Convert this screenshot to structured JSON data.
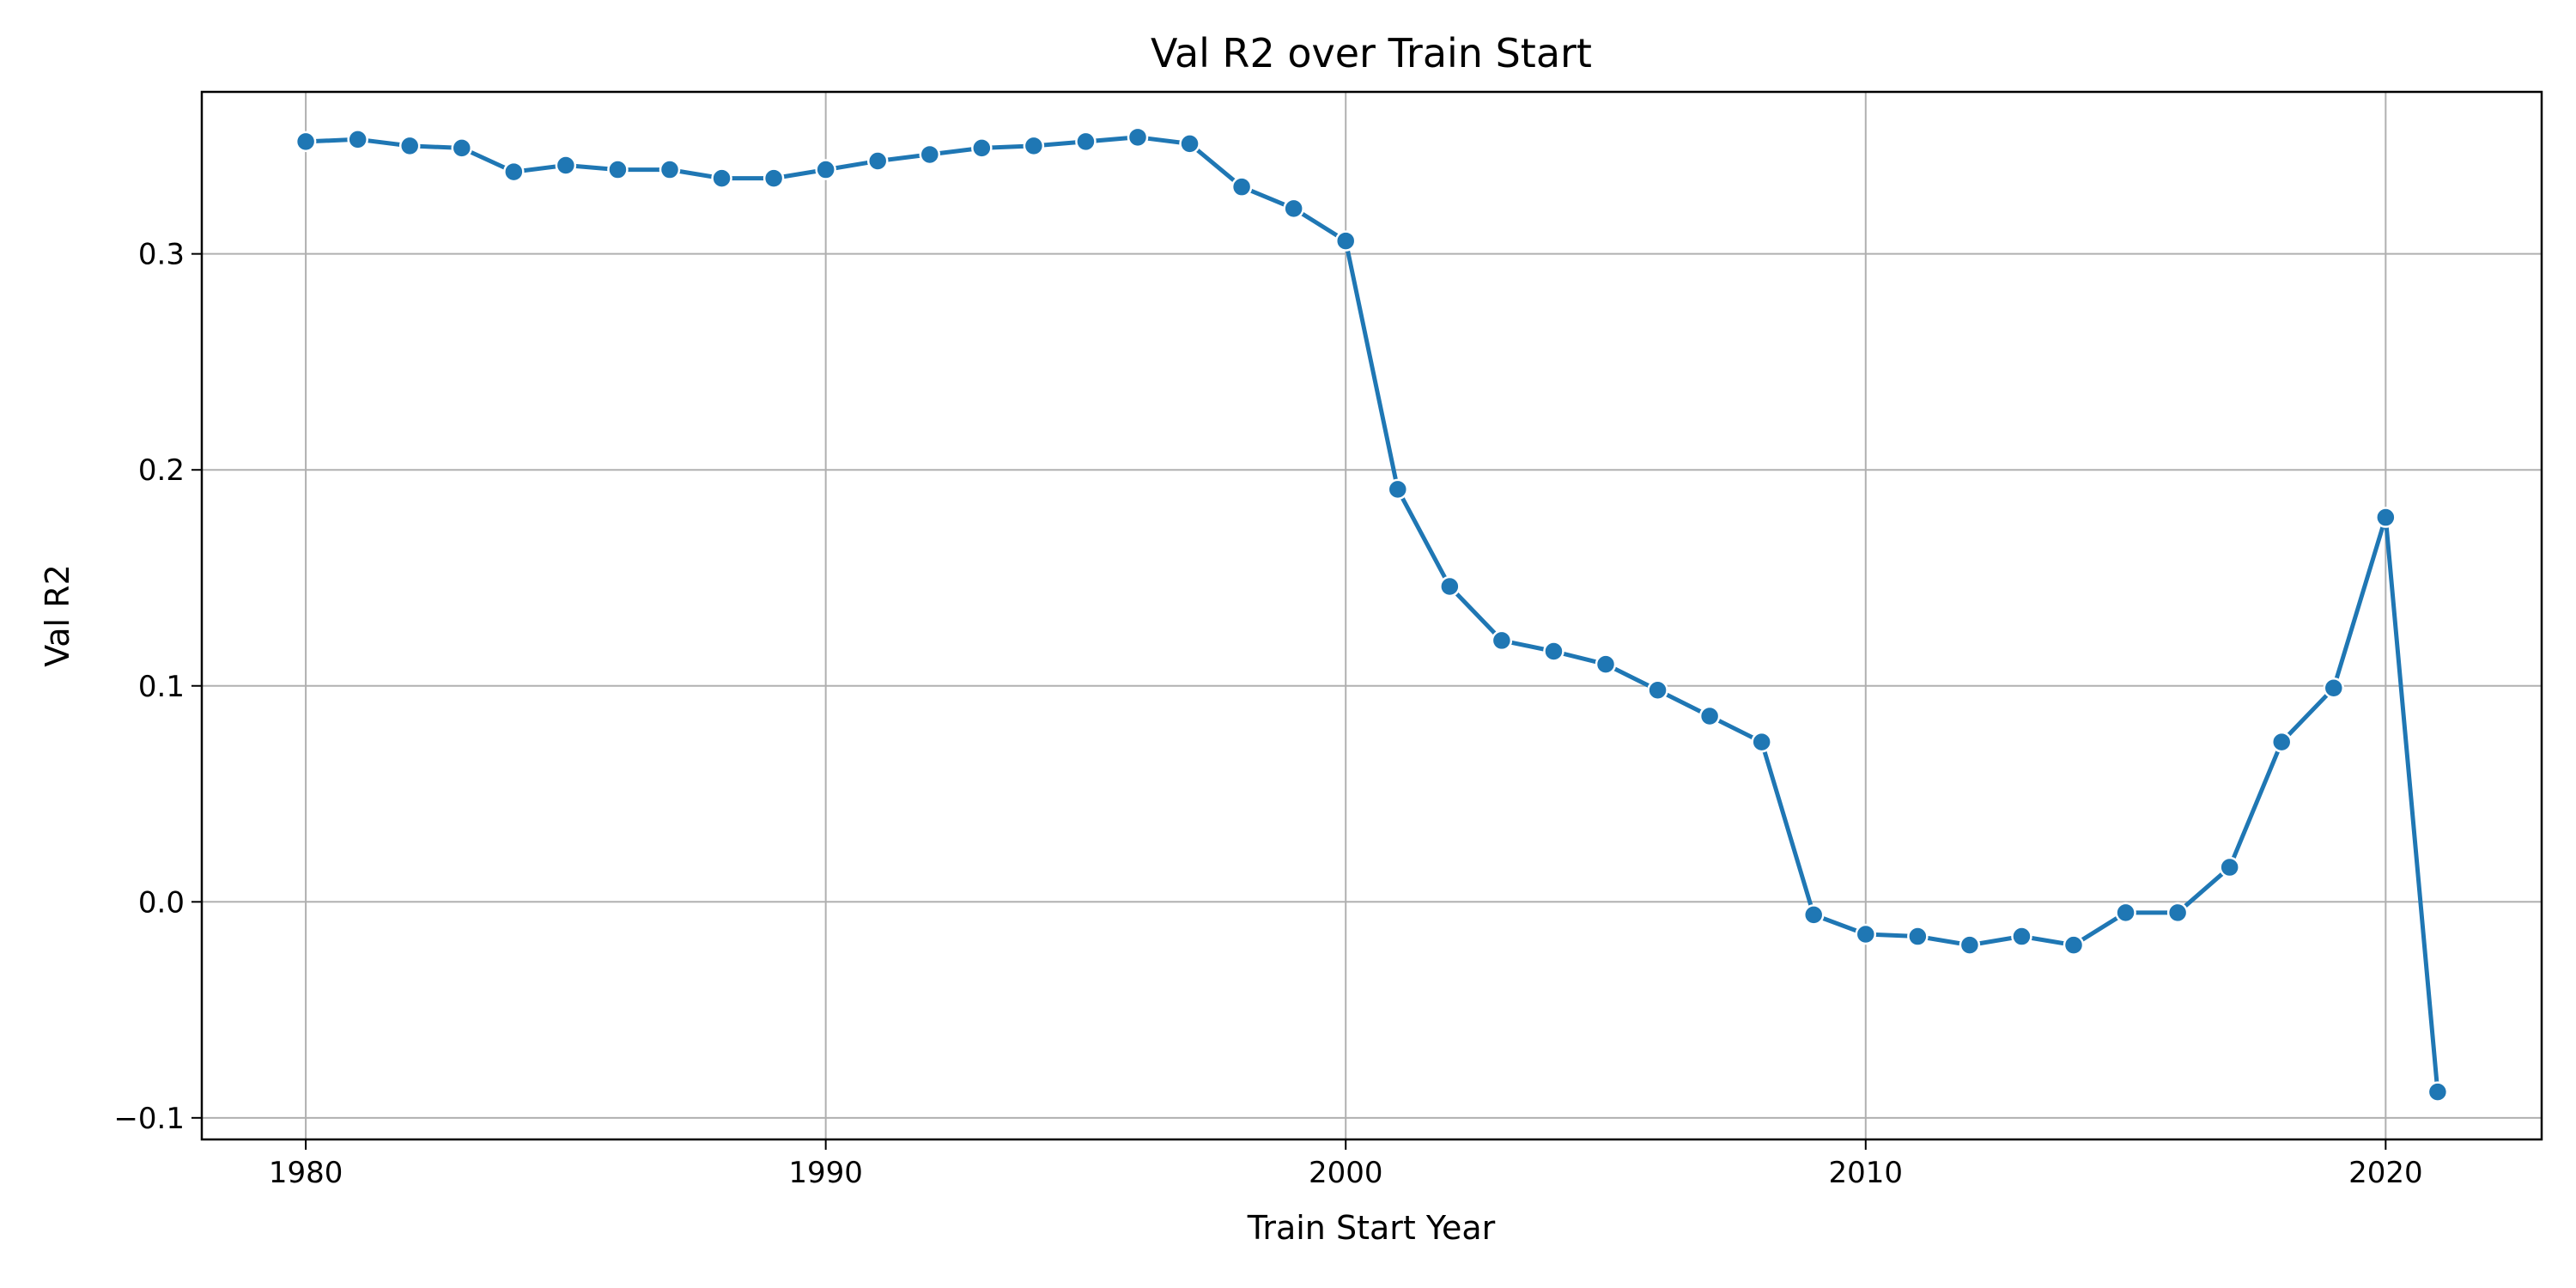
{
  "chart_data": {
    "type": "line",
    "title": "Val R2 over Train Start",
    "xlabel": "Train Start Year",
    "ylabel": "Val R2",
    "xlim": [
      1978,
      2023
    ],
    "ylim": [
      -0.11,
      0.375
    ],
    "x_ticks": [
      1980,
      1990,
      2000,
      2010,
      2020
    ],
    "y_ticks": [
      -0.1,
      0.0,
      0.1,
      0.2,
      0.3
    ],
    "y_tick_labels": [
      "−0.1",
      "0.0",
      "0.1",
      "0.2",
      "0.3"
    ],
    "grid": true,
    "legend": "none",
    "line_color": "#1f77b4",
    "marker": "circle",
    "series": [
      {
        "x": [
          1980,
          1981,
          1982,
          1983,
          1984,
          1985,
          1986,
          1987,
          1988,
          1989,
          1990,
          1991,
          1992,
          1993,
          1994,
          1995,
          1996,
          1997,
          1998,
          1999,
          2000,
          2001,
          2002,
          2003,
          2004,
          2005,
          2006,
          2007,
          2008,
          2009,
          2010,
          2011,
          2012,
          2013,
          2014,
          2015,
          2016,
          2017,
          2018,
          2019,
          2020,
          2021
        ],
        "values": [
          0.352,
          0.353,
          0.35,
          0.349,
          0.338,
          0.341,
          0.339,
          0.339,
          0.335,
          0.335,
          0.339,
          0.343,
          0.346,
          0.349,
          0.35,
          0.352,
          0.354,
          0.351,
          0.331,
          0.321,
          0.306,
          0.191,
          0.146,
          0.121,
          0.116,
          0.11,
          0.098,
          0.086,
          0.074,
          -0.006,
          -0.015,
          -0.016,
          -0.02,
          -0.016,
          -0.02,
          -0.005,
          -0.005,
          0.016,
          0.074,
          0.099,
          0.178,
          -0.088
        ]
      }
    ]
  }
}
